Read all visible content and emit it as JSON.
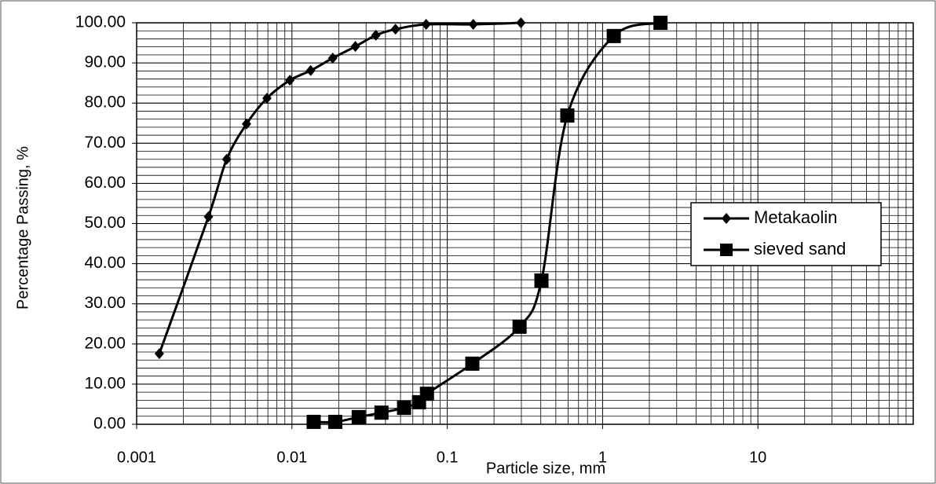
{
  "chart_data": {
    "type": "line",
    "x_label": "Particle size, mm",
    "y_label": "Percentage Passing, %",
    "xlog": true,
    "xlim": [
      0.001,
      100
    ],
    "xticks": [
      0.001,
      0.01,
      0.1,
      1,
      10
    ],
    "ylim": [
      0,
      100
    ],
    "yticks": [
      {
        "value": 0,
        "label": "0.00"
      },
      {
        "value": 10,
        "label": "10.00"
      },
      {
        "value": 20,
        "label": "20.00"
      },
      {
        "value": 30,
        "label": "30.00"
      },
      {
        "value": 40,
        "label": "40.00"
      },
      {
        "value": 50,
        "label": "50.00"
      },
      {
        "value": 60,
        "label": "60.00"
      },
      {
        "value": 70,
        "label": "70.00"
      },
      {
        "value": 80,
        "label": "80.00"
      },
      {
        "value": 90,
        "label": "90.00"
      },
      {
        "value": 100,
        "label": "100.00"
      }
    ],
    "grid": true,
    "minor_grid": true,
    "legend": "right",
    "series": [
      {
        "name": "Metakaolin",
        "color": "#000000",
        "marker": "diamond",
        "x": [
          0.0014,
          0.0029,
          0.0038,
          0.0051,
          0.0069,
          0.0097,
          0.0132,
          0.0183,
          0.0256,
          0.0347,
          0.0464,
          0.0731,
          0.147,
          0.298
        ],
        "values": [
          17.6,
          51.7,
          66,
          74.8,
          81.2,
          85.7,
          88.1,
          91.2,
          94.1,
          96.9,
          98.4,
          99.6,
          99.6,
          100
        ]
      },
      {
        "name": "sieved sand",
        "color": "#000000",
        "marker": "square",
        "x": [
          0.0138,
          0.019,
          0.0269,
          0.0377,
          0.0527,
          0.0658,
          0.074,
          0.145,
          0.292,
          0.404,
          0.593,
          1.18,
          2.36
        ],
        "values": [
          0.6,
          0.6,
          1.8,
          2.9,
          4.1,
          5.5,
          7.6,
          15.1,
          24.3,
          35.8,
          76.9,
          96.7,
          100
        ]
      }
    ]
  }
}
